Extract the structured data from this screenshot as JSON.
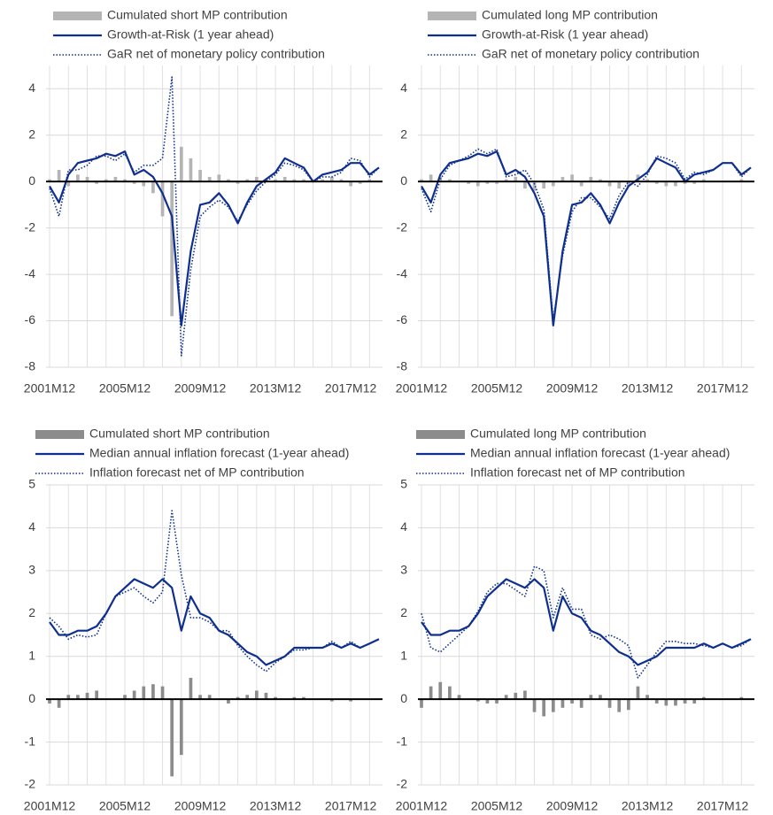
{
  "chart_data": [
    {
      "type": "combo",
      "categories": [
        "2001M12",
        null,
        null,
        null,
        null,
        null,
        null,
        null,
        "2005M12",
        null,
        null,
        null,
        null,
        null,
        null,
        null,
        "2009M12",
        null,
        null,
        null,
        null,
        null,
        null,
        null,
        "2013M12",
        null,
        null,
        null,
        null,
        null,
        null,
        null,
        "2017M12",
        null,
        null,
        null
      ],
      "ylim": [
        -8,
        5
      ],
      "yticks": [
        -8,
        -6,
        -4,
        -2,
        0,
        2,
        4
      ],
      "grid": true,
      "series": [
        {
          "name": "Cumulated short MP contribution",
          "style": "bar",
          "color": "#b4b4b4",
          "values": [
            0.1,
            0.5,
            -0.2,
            0.3,
            0.2,
            -0.1,
            0.1,
            0.2,
            0.1,
            -0.1,
            -0.2,
            -0.5,
            -1.5,
            -5.8,
            1.5,
            1.0,
            0.5,
            0.2,
            0.3,
            0.1,
            -0.1,
            0.1,
            0.2,
            0.1,
            0.1,
            0.2,
            0.1,
            0.1,
            0.0,
            0.1,
            0.2,
            0.1,
            -0.2,
            -0.1,
            0.1,
            0.0
          ]
        },
        {
          "name": "Growth-at-Risk (1 year ahead)",
          "style": "line",
          "color": "#0f2f8f",
          "values": [
            -0.2,
            -0.9,
            0.3,
            0.8,
            0.9,
            1.0,
            1.2,
            1.1,
            1.3,
            0.3,
            0.5,
            0.2,
            -0.5,
            -1.5,
            -6.2,
            -3.0,
            -1.0,
            -0.9,
            -0.5,
            -1.0,
            -1.8,
            -0.9,
            -0.2,
            0.1,
            0.4,
            1.0,
            0.8,
            0.6,
            0.0,
            0.3,
            0.4,
            0.5,
            0.8,
            0.8,
            0.3,
            0.6
          ]
        },
        {
          "name": "GaR net of monetary policy contribution",
          "style": "dotted",
          "color": "#0f2f8f",
          "values": [
            -0.3,
            -1.5,
            0.5,
            0.5,
            0.7,
            1.1,
            1.1,
            0.9,
            1.2,
            0.4,
            0.7,
            0.7,
            1.0,
            4.5,
            -7.5,
            -3.8,
            -1.5,
            -1.1,
            -0.8,
            -1.1,
            -1.7,
            -1.0,
            -0.4,
            0.0,
            0.3,
            0.8,
            0.7,
            0.5,
            0.0,
            0.2,
            0.2,
            0.4,
            1.0,
            0.9,
            0.2,
            0.6
          ]
        }
      ]
    },
    {
      "type": "combo",
      "categories": [
        "2001M12",
        null,
        null,
        null,
        null,
        null,
        null,
        null,
        "2005M12",
        null,
        null,
        null,
        null,
        null,
        null,
        null,
        "2009M12",
        null,
        null,
        null,
        null,
        null,
        null,
        null,
        "2013M12",
        null,
        null,
        null,
        null,
        null,
        null,
        null,
        "2017M12",
        null,
        null,
        null
      ],
      "ylim": [
        -8,
        5
      ],
      "yticks": [
        -8,
        -6,
        -4,
        -2,
        0,
        2,
        4
      ],
      "grid": true,
      "series": [
        {
          "name": "Cumulated long MP contribution",
          "style": "bar",
          "color": "#b4b4b4",
          "values": [
            0.1,
            0.3,
            0.2,
            0.1,
            0.0,
            -0.1,
            -0.2,
            -0.1,
            -0.1,
            0.1,
            0.2,
            -0.3,
            -0.4,
            -0.3,
            -0.2,
            0.2,
            0.3,
            -0.2,
            0.2,
            0.1,
            -0.2,
            -0.3,
            -0.2,
            0.3,
            0.1,
            -0.1,
            -0.2,
            -0.2,
            -0.1,
            -0.1,
            0.1,
            0.0,
            0.0,
            0.0,
            0.1,
            0.0
          ]
        },
        {
          "name": "Growth-at-Risk (1 year ahead)",
          "style": "line",
          "color": "#0f2f8f",
          "values": [
            -0.2,
            -0.9,
            0.3,
            0.8,
            0.9,
            1.0,
            1.2,
            1.1,
            1.3,
            0.3,
            0.5,
            0.2,
            -0.5,
            -1.5,
            -6.2,
            -3.0,
            -1.0,
            -0.9,
            -0.5,
            -1.0,
            -1.8,
            -0.9,
            -0.2,
            0.1,
            0.4,
            1.0,
            0.8,
            0.6,
            0.0,
            0.3,
            0.4,
            0.5,
            0.8,
            0.8,
            0.3,
            0.6
          ]
        },
        {
          "name": "GaR net of monetary policy contribution",
          "style": "dotted",
          "color": "#0f2f8f",
          "values": [
            -0.3,
            -1.3,
            0.1,
            0.7,
            0.9,
            1.1,
            1.4,
            1.2,
            1.4,
            0.2,
            0.3,
            0.5,
            -0.1,
            -1.2,
            -6.0,
            -3.2,
            -1.3,
            -0.7,
            -0.7,
            -1.1,
            -1.6,
            -0.6,
            0.0,
            -0.2,
            0.3,
            1.1,
            1.0,
            0.8,
            0.1,
            0.4,
            0.3,
            0.5,
            0.8,
            0.8,
            0.2,
            0.6
          ]
        }
      ]
    },
    {
      "type": "combo",
      "categories": [
        "2001M12",
        null,
        null,
        null,
        null,
        null,
        null,
        null,
        "2005M12",
        null,
        null,
        null,
        null,
        null,
        null,
        null,
        "2009M12",
        null,
        null,
        null,
        null,
        null,
        null,
        null,
        "2013M12",
        null,
        null,
        null,
        null,
        null,
        null,
        null,
        "2017M12",
        null,
        null,
        null
      ],
      "ylim": [
        -2,
        5
      ],
      "yticks": [
        -2,
        -1,
        0,
        1,
        2,
        3,
        4,
        5
      ],
      "grid": true,
      "series": [
        {
          "name": "Cumulated short MP contribution",
          "style": "bar",
          "color": "#8c8c8c",
          "values": [
            -0.1,
            -0.2,
            0.1,
            0.1,
            0.15,
            0.2,
            0.0,
            0.0,
            0.1,
            0.2,
            0.3,
            0.35,
            0.3,
            -1.8,
            -1.3,
            0.5,
            0.1,
            0.1,
            0.0,
            -0.1,
            0.05,
            0.1,
            0.2,
            0.15,
            0.05,
            0.0,
            0.05,
            0.05,
            0.0,
            0.0,
            -0.05,
            0.0,
            -0.05,
            0.0,
            0.0,
            0.0
          ]
        },
        {
          "name": "Median annual inflation forecast (1-year ahead)",
          "style": "line",
          "color": "#0f2f8f",
          "values": [
            1.8,
            1.5,
            1.5,
            1.6,
            1.6,
            1.7,
            2.0,
            2.4,
            2.6,
            2.8,
            2.7,
            2.6,
            2.8,
            2.6,
            1.6,
            2.4,
            2.0,
            1.9,
            1.6,
            1.5,
            1.3,
            1.1,
            1.0,
            0.8,
            0.9,
            1.0,
            1.2,
            1.2,
            1.2,
            1.2,
            1.3,
            1.2,
            1.3,
            1.2,
            1.3,
            1.4
          ]
        },
        {
          "name": "Inflation forecast net of MP contribution",
          "style": "dotted",
          "color": "#0f2f8f",
          "values": [
            1.9,
            1.7,
            1.4,
            1.5,
            1.45,
            1.5,
            2.0,
            2.4,
            2.5,
            2.6,
            2.4,
            2.25,
            2.5,
            4.4,
            2.9,
            1.9,
            1.9,
            1.8,
            1.6,
            1.6,
            1.25,
            1.0,
            0.8,
            0.65,
            0.85,
            1.0,
            1.15,
            1.15,
            1.2,
            1.2,
            1.35,
            1.2,
            1.35,
            1.2,
            1.3,
            1.4
          ]
        }
      ]
    },
    {
      "type": "combo",
      "categories": [
        "2001M12",
        null,
        null,
        null,
        null,
        null,
        null,
        null,
        "2005M12",
        null,
        null,
        null,
        null,
        null,
        null,
        null,
        "2009M12",
        null,
        null,
        null,
        null,
        null,
        null,
        null,
        "2013M12",
        null,
        null,
        null,
        null,
        null,
        null,
        null,
        "2017M12",
        null,
        null,
        null
      ],
      "ylim": [
        -2,
        5
      ],
      "yticks": [
        -2,
        -1,
        0,
        1,
        2,
        3,
        4,
        5
      ],
      "grid": true,
      "series": [
        {
          "name": "Cumulated long MP contribution",
          "style": "bar",
          "color": "#8c8c8c",
          "values": [
            -0.2,
            0.3,
            0.4,
            0.3,
            0.1,
            0.0,
            -0.05,
            -0.1,
            -0.1,
            0.1,
            0.15,
            0.2,
            -0.3,
            -0.4,
            -0.3,
            -0.2,
            -0.1,
            -0.2,
            0.1,
            0.1,
            -0.2,
            -0.3,
            -0.25,
            0.3,
            0.1,
            -0.1,
            -0.15,
            -0.15,
            -0.1,
            -0.1,
            0.05,
            0.0,
            0.0,
            0.0,
            0.05,
            0.0
          ]
        },
        {
          "name": "Median annual inflation forecast (1-year ahead)",
          "style": "line",
          "color": "#0f2f8f",
          "values": [
            1.8,
            1.5,
            1.5,
            1.6,
            1.6,
            1.7,
            2.0,
            2.4,
            2.6,
            2.8,
            2.7,
            2.6,
            2.8,
            2.6,
            1.6,
            2.4,
            2.0,
            1.9,
            1.6,
            1.5,
            1.3,
            1.1,
            1.0,
            0.8,
            0.9,
            1.0,
            1.2,
            1.2,
            1.2,
            1.2,
            1.3,
            1.2,
            1.3,
            1.2,
            1.3,
            1.4
          ]
        },
        {
          "name": "Inflation forecast net of MP contribution",
          "style": "dotted",
          "color": "#0f2f8f",
          "values": [
            2.0,
            1.2,
            1.1,
            1.3,
            1.5,
            1.7,
            2.05,
            2.5,
            2.7,
            2.7,
            2.55,
            2.4,
            3.1,
            3.0,
            1.9,
            2.6,
            2.1,
            2.1,
            1.5,
            1.4,
            1.5,
            1.4,
            1.25,
            0.5,
            0.8,
            1.1,
            1.35,
            1.35,
            1.3,
            1.3,
            1.25,
            1.2,
            1.3,
            1.2,
            1.25,
            1.4
          ]
        }
      ]
    }
  ]
}
